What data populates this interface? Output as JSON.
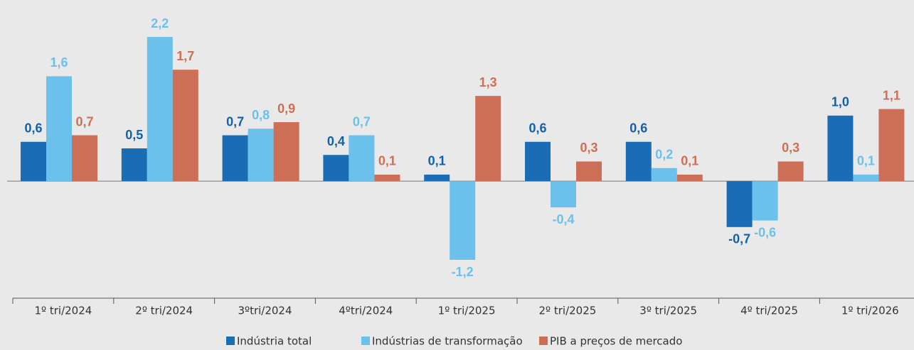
{
  "chart_data": {
    "type": "bar",
    "categories": [
      "1º tri/2024",
      "2º tri/2024",
      "3ºtri/2024",
      "4ºtri/2024",
      "1º tri/2025",
      "2º tri/2025",
      "3º tri/2025",
      "4º tri/2025",
      "1º tri/2026"
    ],
    "series": [
      {
        "name": "Indústria total",
        "color": "#1a6db5",
        "values": [
          0.6,
          0.5,
          0.7,
          0.4,
          0.1,
          0.6,
          0.6,
          -0.7,
          1.0
        ],
        "value_labels": [
          "0,6",
          "0,5",
          "0,7",
          "0,4",
          "0,1",
          "0,6",
          "0,6",
          "-0,7",
          "1,0"
        ]
      },
      {
        "name": "Indústrias de transformação",
        "color": "#6cc0ec",
        "values": [
          1.6,
          2.2,
          0.8,
          0.7,
          -1.2,
          -0.4,
          0.2,
          -0.6,
          0.1
        ],
        "value_labels": [
          "1,6",
          "2,2",
          "0,8",
          "0,7",
          "-1,2",
          "-0,4",
          "0,2",
          "-0,6",
          "0,1"
        ]
      },
      {
        "name": "PIB a preços de mercado",
        "color": "#cd6f56",
        "values": [
          0.7,
          1.7,
          0.9,
          0.1,
          1.3,
          0.3,
          0.1,
          0.3,
          1.1
        ],
        "value_labels": [
          "0,7",
          "1,7",
          "0,9",
          "0,1",
          "1,3",
          "0,3",
          "0,1",
          "0,3",
          "1,1"
        ]
      }
    ]
  }
}
